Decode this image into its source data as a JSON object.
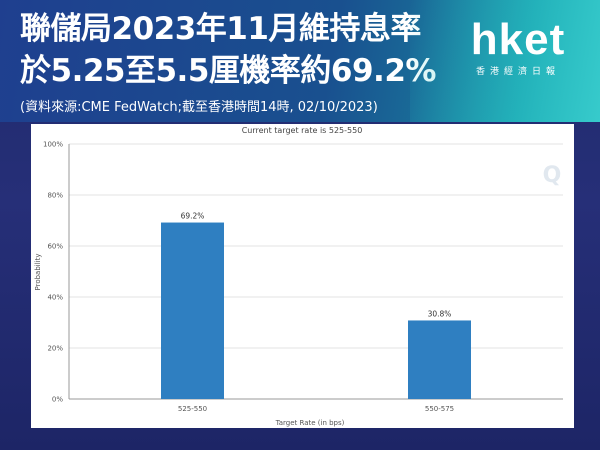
{
  "header": {
    "headline_line1": "聯儲局2023年11月維持息率",
    "headline_line2": "於5.25至5.5厘機率約69.2%",
    "source_note": "(資料來源:CME FedWatch;截至香港時間14時, 02/10/2023)"
  },
  "logo": {
    "word": "hket",
    "sub": "香港經濟日報"
  },
  "colors": {
    "bar": "#2f7fc1",
    "grid": "#e3e3e3",
    "accent": "#1aa0a8"
  },
  "chart_data": {
    "type": "bar",
    "title": "Current target rate is 525-550",
    "xlabel": "Target Rate (in bps)",
    "ylabel": "Probability",
    "categories": [
      "525-550",
      "550-575"
    ],
    "values": [
      69.2,
      30.8
    ],
    "value_labels": [
      "69.2%",
      "30.8%"
    ],
    "ylim": [
      0,
      100
    ],
    "yticks": [
      0,
      20,
      40,
      60,
      80,
      100
    ],
    "ytick_labels": [
      "0%",
      "20%",
      "40%",
      "60%",
      "80%",
      "100%"
    ],
    "grid": true
  }
}
